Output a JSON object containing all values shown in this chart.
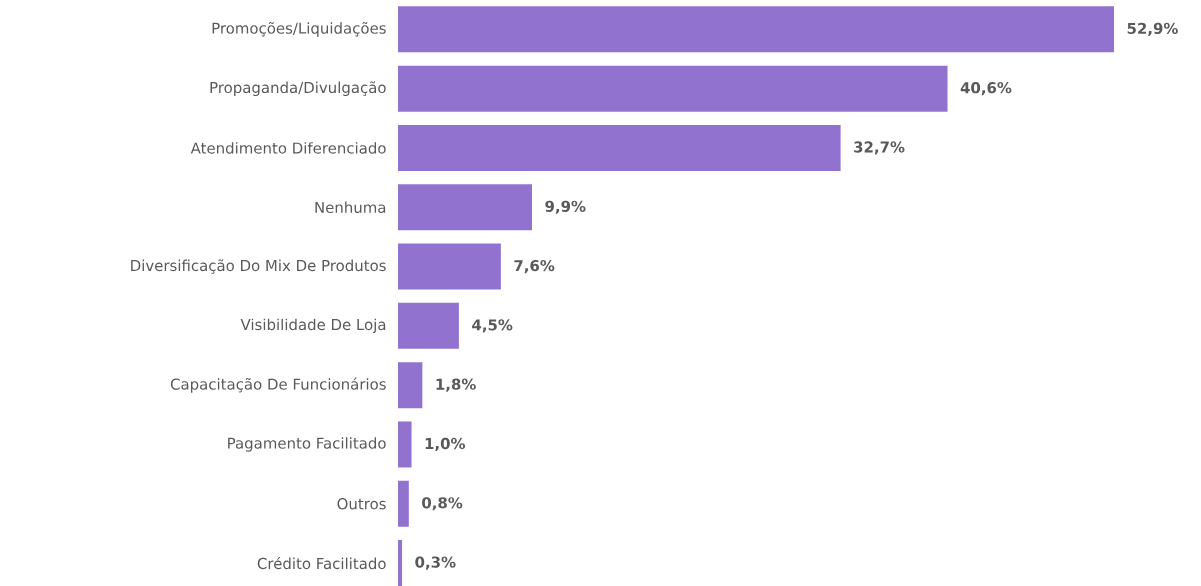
{
  "chart_data": {
    "type": "bar",
    "orientation": "horizontal",
    "color": "#9173cf",
    "categories": [
      "Promoções/Liquidações",
      "Propaganda/Divulgação",
      "Atendimento Diferenciado",
      "Nenhuma",
      "Diversificação Do Mix De Produtos",
      "Visibilidade De Loja",
      "Capacitação De Funcionários",
      "Pagamento Facilitado",
      "Outros",
      "Crédito Facilitado"
    ],
    "values": [
      52.9,
      40.6,
      32.7,
      9.9,
      7.6,
      4.5,
      1.8,
      1.0,
      0.8,
      0.3
    ],
    "value_labels": [
      "52,9%",
      "40,6%",
      "32,7%",
      "9,9%",
      "7,6%",
      "4,5%",
      "1,8%",
      "1,0%",
      "0,8%",
      "0,3%"
    ]
  }
}
